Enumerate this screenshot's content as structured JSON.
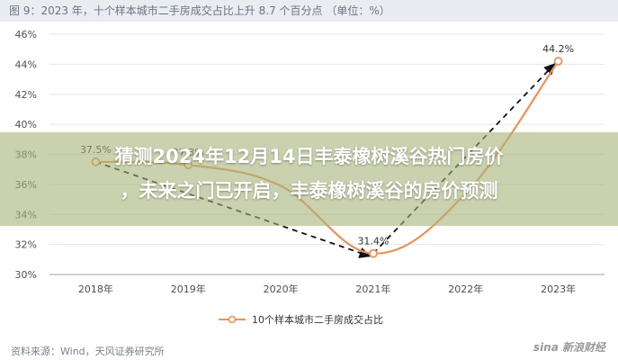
{
  "figure_title": "图 9：2023 年，十个样本城市二手房成交占比上升 8.7 个百分点   （单位：%）",
  "source": "资料来源：Wind，天风证券研究所",
  "headline": {
    "line1": "猜测2024年12月14日丰泰橡树溪谷热门房价",
    "line2": "，未来之门已开启，丰泰橡树溪谷的房价预测"
  },
  "watermark": "sina 新浪财经",
  "chart_data": {
    "type": "line",
    "categories": [
      "2018年",
      "2019年",
      "2020年",
      "2021年",
      "2022年",
      "2023年"
    ],
    "series": [
      {
        "name": "10个样本城市二手房成交占比",
        "values": [
          37.5,
          37.3,
          35.9,
          31.4,
          35.4,
          44.2
        ],
        "color": "#e8935a"
      }
    ],
    "data_labels": [
      "37.5%",
      "37.3%",
      "",
      "31.4%",
      "",
      "44.2%"
    ],
    "yticks": [
      "30%",
      "32%",
      "34%",
      "36%",
      "38%",
      "40%",
      "42%",
      "44%",
      "46%"
    ],
    "ylim": [
      30,
      46
    ],
    "trend_arrows": [
      {
        "from": "2018年",
        "to": "2021年",
        "from_value": 37.5,
        "to_value": 31.4
      },
      {
        "from": "2021年",
        "to": "2023年",
        "from_value": 31.4,
        "to_value": 44.2
      }
    ],
    "legend_position": "bottom-center"
  }
}
